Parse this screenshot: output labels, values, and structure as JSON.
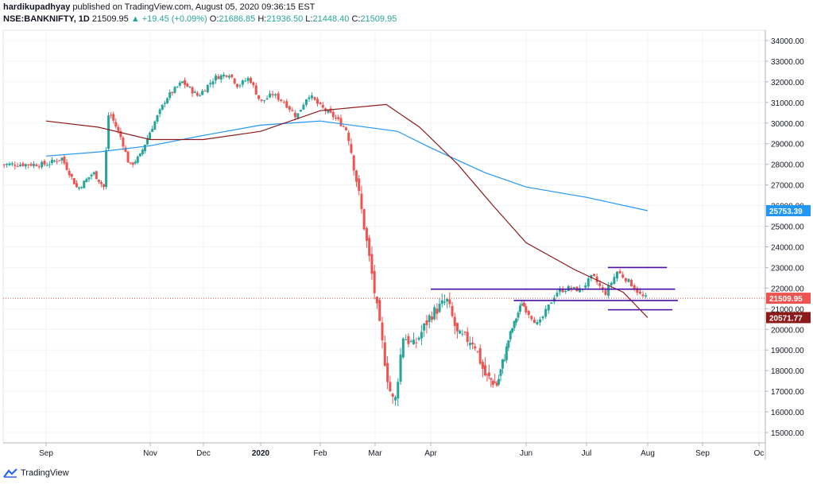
{
  "header": {
    "publisher": "hardikupadhyay",
    "published_text": "published on TradingView.com, August 05, 2020 09:36:15 EST",
    "symbol": "NSE:BANKNIFTY, 1D",
    "last": "21509.95",
    "change": "▲ +19.45 (+0.09%)",
    "open_label": "O:",
    "open": "21686.85",
    "high_label": "H:",
    "high": "21936.50",
    "low_label": "L:",
    "low": "21448.40",
    "close_label": "C:",
    "close": "21509.95"
  },
  "footer": {
    "brand": "TradingView"
  },
  "chart_data": {
    "type": "candlestick",
    "symbol": "NSE:BANKNIFTY",
    "interval": "1D",
    "ylim": [
      14500,
      34500
    ],
    "yticks": [
      "15000.00",
      "16000.00",
      "17000.00",
      "18000.00",
      "19000.00",
      "20000.00",
      "21000.00",
      "22000.00",
      "23000.00",
      "24000.00",
      "25000.00",
      "26000.00",
      "27000.00",
      "28000.00",
      "29000.00",
      "30000.00",
      "31000.00",
      "32000.00",
      "33000.00",
      "34000.00"
    ],
    "xticks": [
      "Sep",
      "Nov",
      "Dec",
      "2020",
      "Feb",
      "Mar",
      "Apr",
      "Jun",
      "Jul",
      "Aug",
      "Sep",
      "Oc"
    ],
    "xtick_positions": [
      0,
      2,
      3,
      4,
      5,
      6,
      7,
      9,
      10,
      11,
      12,
      13
    ],
    "colors": {
      "up": "#26a69a",
      "down": "#ef5350",
      "ma_long": "#2196f3",
      "ma_short": "#8b1a1a",
      "levels": "#4b0fa8",
      "last_line": "#ef5350"
    },
    "price_labels": [
      {
        "value": 25753.39,
        "text": "25753.39",
        "color": "#2196f3"
      },
      {
        "value": 21509.95,
        "text": "21509.95",
        "color": "#ef5350"
      },
      {
        "value": 20571.77,
        "text": "20571.77",
        "color": "#8b1a1a"
      }
    ],
    "close_path": [
      [
        0,
        28000
      ],
      [
        0.3,
        28300
      ],
      [
        0.6,
        26800
      ],
      [
        0.9,
        27600
      ],
      [
        1.1,
        26900
      ],
      [
        1.2,
        30600
      ],
      [
        1.45,
        29200
      ],
      [
        1.6,
        27900
      ],
      [
        1.8,
        28400
      ],
      [
        2.0,
        29600
      ],
      [
        2.3,
        31200
      ],
      [
        2.6,
        32000
      ],
      [
        2.9,
        31300
      ],
      [
        3.2,
        32200
      ],
      [
        3.45,
        32400
      ],
      [
        3.6,
        31800
      ],
      [
        3.8,
        32200
      ],
      [
        4.0,
        31000
      ],
      [
        4.2,
        31400
      ],
      [
        4.4,
        31000
      ],
      [
        4.6,
        30300
      ],
      [
        4.8,
        31400
      ],
      [
        5.0,
        30800
      ],
      [
        5.3,
        30200
      ],
      [
        5.5,
        29600
      ],
      [
        5.65,
        27400
      ],
      [
        5.8,
        25000
      ],
      [
        5.95,
        22500
      ],
      [
        6.1,
        19800
      ],
      [
        6.25,
        17200
      ],
      [
        6.35,
        16300
      ],
      [
        6.5,
        19700
      ],
      [
        6.7,
        19200
      ],
      [
        7.0,
        20700
      ],
      [
        7.3,
        21400
      ],
      [
        7.5,
        19700
      ],
      [
        7.8,
        19400
      ],
      [
        8.0,
        17800
      ],
      [
        8.3,
        17300
      ],
      [
        8.6,
        19700
      ],
      [
        8.9,
        21300
      ],
      [
        9.2,
        20200
      ],
      [
        9.5,
        21800
      ],
      [
        9.7,
        22000
      ],
      [
        9.9,
        21900
      ],
      [
        10.1,
        22600
      ],
      [
        10.3,
        21700
      ],
      [
        10.5,
        22800
      ],
      [
        10.7,
        22300
      ],
      [
        10.9,
        21600
      ],
      [
        11.0,
        21510
      ]
    ],
    "ma_long_path": [
      [
        0,
        28400
      ],
      [
        1,
        28600
      ],
      [
        2,
        28900
      ],
      [
        3,
        29400
      ],
      [
        4,
        29900
      ],
      [
        5,
        30100
      ],
      [
        6.4,
        29600
      ],
      [
        7.0,
        28800
      ],
      [
        8.0,
        27600
      ],
      [
        9.0,
        26900
      ],
      [
        10.0,
        26400
      ],
      [
        11.0,
        25753
      ]
    ],
    "ma_short_path": [
      [
        0,
        30100
      ],
      [
        1,
        29800
      ],
      [
        2,
        29200
      ],
      [
        3,
        29200
      ],
      [
        4,
        29600
      ],
      [
        5,
        30600
      ],
      [
        6.2,
        30900
      ],
      [
        6.8,
        29800
      ],
      [
        7.5,
        28000
      ],
      [
        8.2,
        26000
      ],
      [
        9.0,
        24200
      ],
      [
        9.8,
        22900
      ],
      [
        10.6,
        21800
      ],
      [
        11.0,
        20572
      ]
    ],
    "levels": [
      {
        "name": "resistance-high",
        "x0": 10.35,
        "x1": 11.35,
        "value": 23000
      },
      {
        "name": "resistance-mid",
        "x0": 7.0,
        "x1": 11.5,
        "value": 21950
      },
      {
        "name": "support-mid",
        "x0": 8.7,
        "x1": 11.55,
        "value": 21400
      },
      {
        "name": "support-low",
        "x0": 10.35,
        "x1": 11.45,
        "value": 20950
      }
    ]
  }
}
